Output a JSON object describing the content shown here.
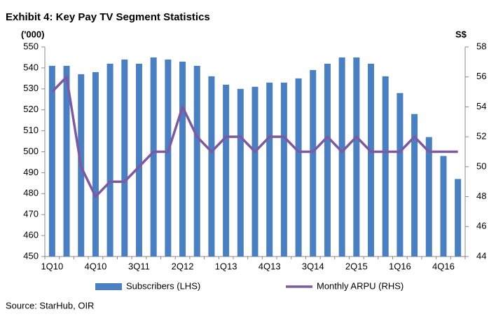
{
  "chart_data": {
    "type": "bar_line",
    "title": "Exhibit 4: Key Pay TV Segment Statistics",
    "y_label": "('000)",
    "y2_label": "S$",
    "source": "Source: StarHub, OIR",
    "categories": [
      "1Q10",
      null,
      null,
      "4Q10",
      null,
      null,
      "3Q11",
      null,
      null,
      "2Q12",
      null,
      null,
      "1Q13",
      null,
      null,
      "4Q13",
      null,
      null,
      "3Q14",
      null,
      null,
      "2Q15",
      null,
      null,
      "1Q16",
      null,
      null,
      "4Q16",
      null
    ],
    "series": [
      {
        "name": "Subscribers (LHS)",
        "color": "#4a7fc1",
        "kind": "bar",
        "values": [
          541,
          541,
          537,
          538,
          542,
          544,
          542,
          545,
          544,
          543,
          541,
          536,
          532,
          530,
          531,
          533,
          533,
          535,
          539,
          542,
          545,
          545,
          542,
          536,
          528,
          518,
          507,
          498,
          487
        ]
      },
      {
        "name": "Monthly ARPU (RHS)",
        "color": "#7d5aa0",
        "kind": "line",
        "axis": "y2",
        "values": [
          55,
          56,
          50,
          48,
          49,
          49,
          50,
          51,
          51,
          54,
          52,
          51,
          52,
          52,
          51,
          52,
          52,
          51,
          51,
          52,
          51,
          52,
          51,
          51,
          51,
          52,
          51,
          51,
          51
        ]
      }
    ],
    "ylim": [
      450,
      550
    ],
    "yticks": [
      450,
      460,
      470,
      480,
      490,
      500,
      510,
      520,
      530,
      540,
      550
    ],
    "y2lim": [
      44,
      58
    ],
    "y2ticks": [
      44,
      46,
      48,
      50,
      52,
      54,
      56,
      58
    ],
    "legend": "bottom"
  }
}
